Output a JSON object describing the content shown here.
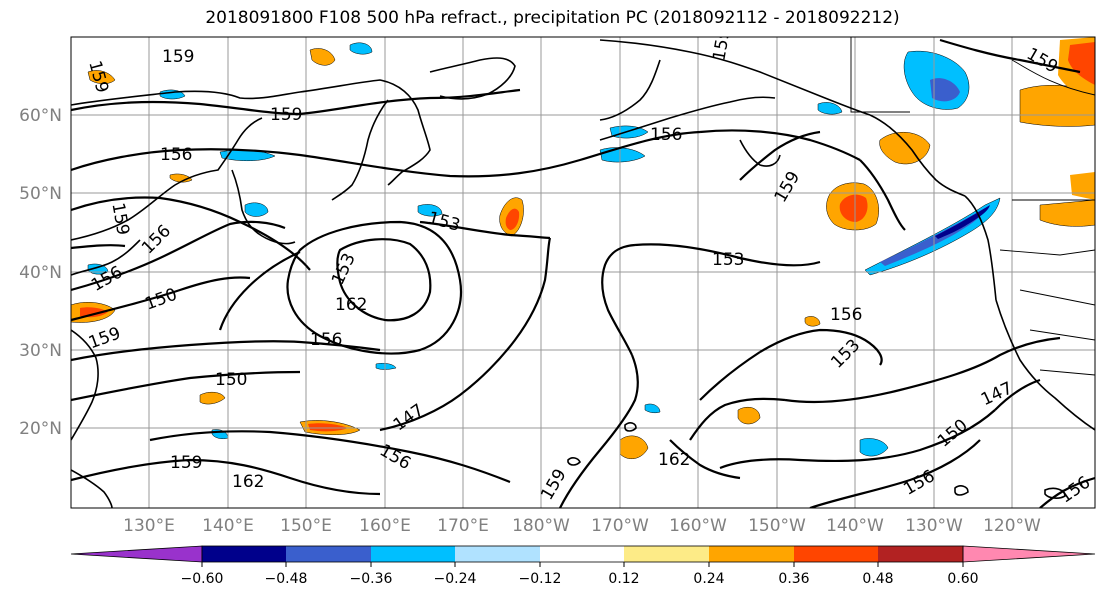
{
  "title": "2018091800 F108 500 hPa refract., precipitation PC (2018092112 - 2018092212)",
  "lat_labels": [
    "60°N",
    "50°N",
    "40°N",
    "30°N",
    "20°N"
  ],
  "lon_labels": [
    "130°E",
    "140°E",
    "150°E",
    "160°E",
    "170°E",
    "180°W",
    "170°W",
    "160°W",
    "150°W",
    "140°W",
    "130°W",
    "120°W"
  ],
  "colorbar": {
    "ticks": [
      "−0.60",
      "−0.48",
      "−0.36",
      "−0.24",
      "−0.12",
      "0.12",
      "0.24",
      "0.36",
      "0.48",
      "0.60"
    ],
    "colors": [
      "#9932cc",
      "#00008b",
      "#3a5fcd",
      "#00bfff",
      "#b0e2ff",
      "#ffffff",
      "#fdeb87",
      "#ffa500",
      "#ff4500",
      "#b22222",
      "#ff88b0"
    ]
  },
  "contour_labels": [
    "159",
    "159",
    "159",
    "159",
    "156",
    "156",
    "156",
    "156",
    "156",
    "159",
    "159",
    "153",
    "153",
    "153",
    "162",
    "156",
    "153",
    "150",
    "159",
    "150",
    "147",
    "156",
    "159",
    "162",
    "159",
    "162",
    "147",
    "150",
    "156",
    "156",
    "159",
    "153"
  ]
}
